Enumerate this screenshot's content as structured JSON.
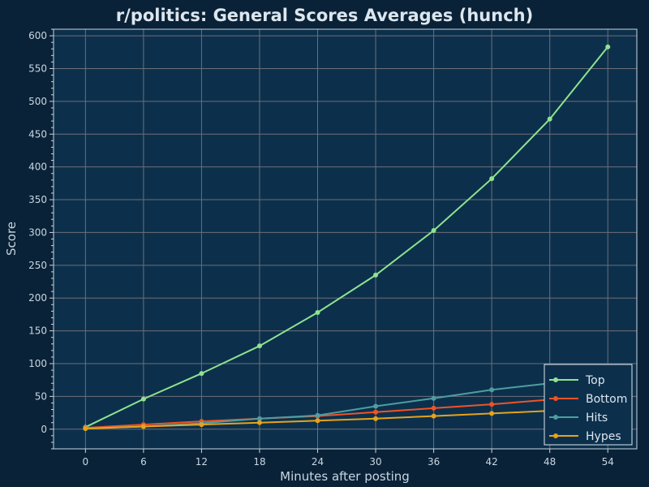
{
  "chart_data": {
    "type": "line",
    "title": "r/politics: General Scores Averages (hunch)",
    "xlabel": "Minutes after posting",
    "ylabel": "Score",
    "x": [
      0,
      6,
      12,
      18,
      24,
      30,
      36,
      42,
      48,
      54
    ],
    "xticks": [
      "0",
      "6",
      "12",
      "18",
      "24",
      "30",
      "36",
      "42",
      "48",
      "54"
    ],
    "xlim": [
      -3.3,
      57
    ],
    "yticks": [
      "0",
      "50",
      "100",
      "150",
      "200",
      "250",
      "300",
      "350",
      "400",
      "450",
      "500",
      "550",
      "600"
    ],
    "ylim": [
      -30,
      610
    ],
    "grid": true,
    "legend_position": "bottom-right",
    "colors": {
      "background": "#0a2237",
      "plot_background": "#0c304c",
      "grid": "#6e6e78",
      "axis": "#c9d6e2"
    },
    "series": [
      {
        "name": "Top",
        "color": "#8fe38f",
        "values": [
          3,
          46,
          85,
          127,
          178,
          235,
          303,
          382,
          473,
          583
        ]
      },
      {
        "name": "Bottom",
        "color": "#f05326",
        "values": [
          2,
          7,
          12,
          16,
          20,
          26,
          32,
          38,
          45,
          53
        ]
      },
      {
        "name": "Hits",
        "color": "#4e9da2",
        "values": [
          1,
          4,
          9,
          16,
          21,
          35,
          47,
          60,
          70,
          80
        ]
      },
      {
        "name": "Hypes",
        "color": "#e5a31b",
        "values": [
          1,
          4,
          7,
          10,
          13,
          16,
          20,
          24,
          28,
          32
        ]
      }
    ]
  }
}
